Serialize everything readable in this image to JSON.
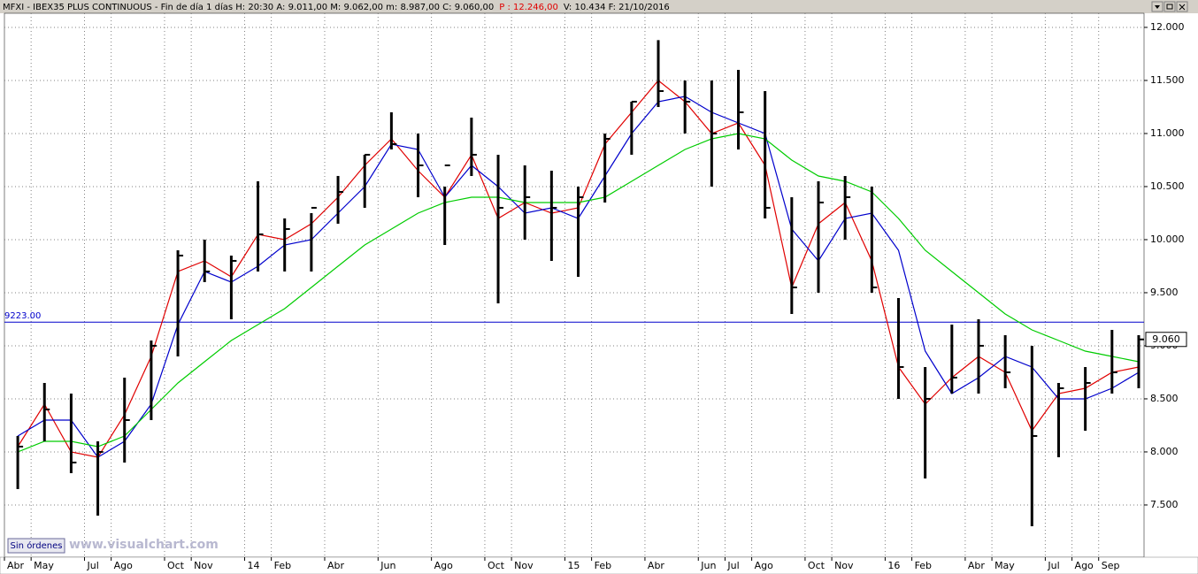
{
  "chart_data": {
    "type": "ohlc",
    "title": "MFXI - IBEX35 PLUS CONTINUOUS - Fin de día 1 días  H: 20:30  A: 9.011,00  M: 9.062,00  m: 8.987,00  C: 9.060,00",
    "title_highlight": "P : 12.246,00",
    "title_tail": "V: 10.434  F: 21/10/2016",
    "button": "Sin órdenes",
    "watermark": "www.visualchart.com",
    "categories": [
      "Abr",
      "May",
      null,
      "Jul",
      "Ago",
      null,
      "Oct",
      "Nov",
      null,
      "14",
      "Feb",
      null,
      "Abr",
      null,
      "Jun",
      null,
      "Ago",
      null,
      "Oct",
      "Nov",
      null,
      "15",
      "Feb",
      null,
      "Abr",
      null,
      "Jun",
      "Jul",
      "Ago",
      null,
      "Oct",
      "Nov",
      null,
      "16",
      "Feb",
      null,
      "Abr",
      "May",
      null,
      "Jul",
      "Ago",
      "Sep",
      null
    ],
    "color": "#000000",
    "high": [
      8150,
      8650,
      8550,
      8100,
      8700,
      9050,
      9900,
      10000,
      9850,
      10550,
      10200,
      10250,
      10600,
      10800,
      11200,
      11000,
      10500,
      11150,
      10800,
      10700,
      10650,
      10500,
      11000,
      11300,
      11880,
      11500,
      11500,
      11600,
      11400,
      10400,
      10550,
      10600,
      10500,
      9450,
      8800,
      9200,
      9250,
      9100,
      9000,
      8650,
      8800,
      9150,
      9100
    ],
    "low": [
      7650,
      8100,
      7800,
      7400,
      7900,
      8300,
      8900,
      9600,
      9250,
      9700,
      9700,
      9700,
      10150,
      10300,
      10850,
      10400,
      9950,
      10600,
      9400,
      10000,
      9800,
      9650,
      10350,
      10800,
      11250,
      11000,
      10500,
      10850,
      10200,
      9300,
      9500,
      10000,
      9500,
      8500,
      7750,
      8550,
      8550,
      8600,
      7300,
      7950,
      8200,
      8550,
      8600
    ],
    "close": [
      8050,
      8400,
      7900,
      8000,
      8300,
      9000,
      9850,
      9700,
      9800,
      10050,
      10100,
      10300,
      10450,
      10800,
      10900,
      10700,
      10700,
      10800,
      10300,
      10400,
      10300,
      10400,
      10950,
      11300,
      11400,
      11300,
      11000,
      11200,
      10300,
      9550,
      10350,
      10400,
      9550,
      8800,
      8500,
      8700,
      9000,
      8750,
      8150,
      8600,
      8650,
      8750,
      9060
    ],
    "series": [
      {
        "name": "MA fast",
        "color": "#e00000",
        "values": [
          8050,
          8450,
          8000,
          7950,
          8350,
          8900,
          9700,
          9800,
          9650,
          10050,
          10000,
          10150,
          10400,
          10700,
          10950,
          10650,
          10400,
          10800,
          10200,
          10350,
          10250,
          10300,
          10900,
          11200,
          11500,
          11300,
          11000,
          11100,
          10700,
          9550,
          10150,
          10350,
          9800,
          8800,
          8450,
          8700,
          8900,
          8750,
          8200,
          8550,
          8600,
          8750,
          8800
        ]
      },
      {
        "name": "MA medium",
        "color": "#0000cc",
        "values": [
          8150,
          8300,
          8300,
          7950,
          8100,
          8450,
          9200,
          9700,
          9600,
          9750,
          9950,
          10000,
          10250,
          10500,
          10900,
          10850,
          10400,
          10700,
          10500,
          10250,
          10300,
          10200,
          10600,
          11000,
          11300,
          11350,
          11200,
          11100,
          11000,
          10100,
          9800,
          10200,
          10250,
          9900,
          8950,
          8550,
          8700,
          8900,
          8800,
          8500,
          8500,
          8600,
          8750
        ]
      },
      {
        "name": "MA slow",
        "color": "#00cc00",
        "values": [
          8000,
          8100,
          8100,
          8050,
          8150,
          8400,
          8650,
          8850,
          9050,
          9200,
          9350,
          9550,
          9750,
          9950,
          10100,
          10250,
          10350,
          10400,
          10400,
          10350,
          10350,
          10350,
          10400,
          10550,
          10700,
          10850,
          10950,
          11000,
          10950,
          10750,
          10600,
          10550,
          10450,
          10200,
          9900,
          9700,
          9500,
          9300,
          9150,
          9050,
          8950,
          8900,
          8850
        ]
      }
    ],
    "hline": {
      "value": 9223,
      "label": "9223.00",
      "color": "#0000cc"
    },
    "last_price": {
      "value": 9060,
      "label": "9.060"
    },
    "ylim": [
      7008,
      12133
    ],
    "yticks": [
      {
        "value": 7500,
        "label": "7.500"
      },
      {
        "value": 8000,
        "label": "8.000"
      },
      {
        "value": 8500,
        "label": "8.500"
      },
      {
        "value": 9000,
        "label": "9.000"
      },
      {
        "value": 9500,
        "label": "9.500"
      },
      {
        "value": 10000,
        "label": "10.000"
      },
      {
        "value": 10500,
        "label": "10.500"
      },
      {
        "value": 11000,
        "label": "11.000"
      },
      {
        "value": 11500,
        "label": "11.500"
      },
      {
        "value": 12000,
        "label": "12.000"
      }
    ],
    "grid": true
  }
}
